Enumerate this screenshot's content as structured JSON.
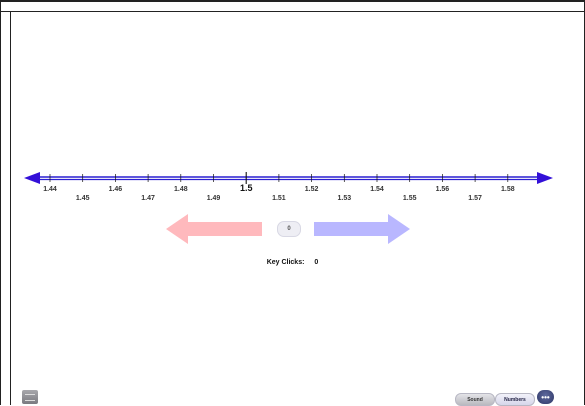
{
  "numberline": {
    "upper_labels": [
      "1.44",
      "1.46",
      "1.48",
      "1.5",
      "1.52",
      "1.54",
      "1.56",
      "1.58"
    ],
    "lower_labels": [
      "1.45",
      "1.47",
      "1.49",
      "1.51",
      "1.53",
      "1.55",
      "1.57"
    ],
    "center_label": "1.5",
    "line_color": "#2a1fd1",
    "arrowhead_color": "#3310d8"
  },
  "controls": {
    "center_value": "0",
    "left_arrow_color": "#ffb9bd",
    "right_arrow_color": "#b9b7ff"
  },
  "status": {
    "key_clicks_label": "Key Clicks:",
    "key_clicks_value": "0"
  },
  "toolbar": {
    "sound_label": "Sound",
    "numbers_label": "Numbers",
    "more_label": "•••"
  }
}
